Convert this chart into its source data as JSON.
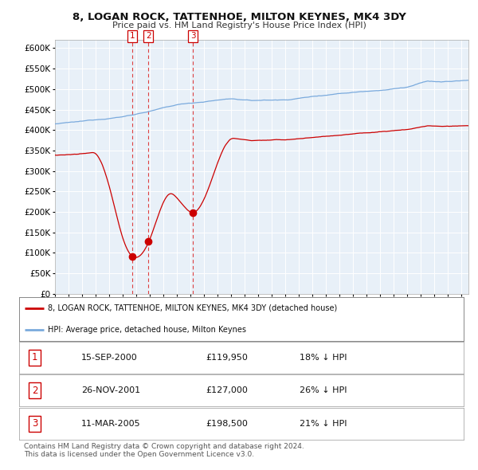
{
  "title": "8, LOGAN ROCK, TATTENHOE, MILTON KEYNES, MK4 3DY",
  "subtitle": "Price paid vs. HM Land Registry's House Price Index (HPI)",
  "legend_line1": "8, LOGAN ROCK, TATTENHOE, MILTON KEYNES, MK4 3DY (detached house)",
  "legend_line2": "HPI: Average price, detached house, Milton Keynes",
  "sale_points": [
    {
      "num": 1,
      "date": "15-SEP-2000",
      "price": 119950,
      "pct": "18% ↓ HPI",
      "x_year": 2000.71
    },
    {
      "num": 2,
      "date": "26-NOV-2001",
      "price": 127000,
      "pct": "26% ↓ HPI",
      "x_year": 2001.9
    },
    {
      "num": 3,
      "date": "11-MAR-2005",
      "price": 198500,
      "pct": "21% ↓ HPI",
      "x_year": 2005.19
    }
  ],
  "hpi_color": "#7aaadd",
  "price_color": "#cc0000",
  "plot_bg": "#e8f0f8",
  "vline_color": "#dd2222",
  "footer": "Contains HM Land Registry data © Crown copyright and database right 2024.\nThis data is licensed under the Open Government Licence v3.0.",
  "ylim": [
    0,
    620000
  ],
  "xlim_start": 1995.0,
  "xlim_end": 2025.5
}
